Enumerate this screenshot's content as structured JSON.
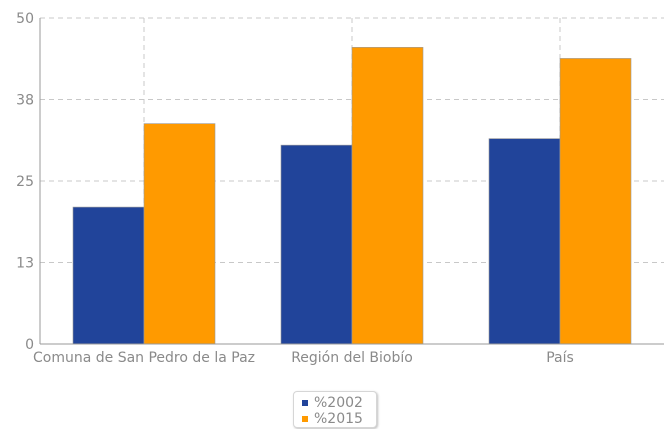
{
  "chart_data": {
    "type": "bar",
    "categories": [
      "Comuna de San Pedro de la Paz",
      "Región del Biobío",
      "País"
    ],
    "series": [
      {
        "name": "%2002",
        "color": "#21449a",
        "values": [
          21,
          30.5,
          31.5
        ]
      },
      {
        "name": "%2015",
        "color": "#ff9a00",
        "values": [
          33.8,
          45.5,
          43.8
        ]
      }
    ],
    "y_ticks": [
      "0",
      "13",
      "25",
      "38",
      "50"
    ],
    "ylim": [
      0,
      50
    ],
    "grid": true,
    "legend_position": "bottom-center"
  }
}
